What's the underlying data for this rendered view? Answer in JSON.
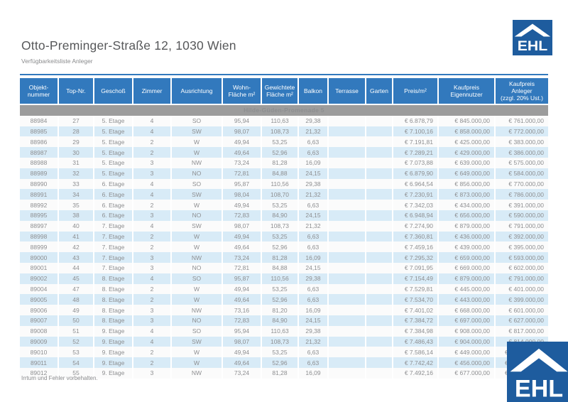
{
  "colors": {
    "brand_blue": "#1e5c9e",
    "header_blue": "#3279bd",
    "group_gray": "#9c9c9c",
    "row_alt_blue": "#d8ebf7",
    "row_light": "#fbfbfb",
    "text_gray": "#8d8e90",
    "title_gray": "#57585a"
  },
  "header": {
    "title": "Otto-Preminger-Straße 12, 1030 Wien",
    "subtitle": "Verfügbarkeitsliste Anleger",
    "logo_text": "EHL"
  },
  "table": {
    "group_label": "Hilde-Güden-Promenade 5",
    "columns": [
      "Objekt-\nnummer",
      "Top-Nr.",
      "Geschoß",
      "Zimmer",
      "Ausrichtung",
      "Wohn-\nFläche m²",
      "Gewichtete\nFläche m²",
      "Balkon",
      "Terrasse",
      "Garten",
      "Preis/m²",
      "Kaufpreis\nEigennutzer",
      "Kaufpreis\nAnleger\n(zzgl. 20% Ust.)"
    ],
    "column_keys": [
      "objektnummer",
      "top_nr",
      "geschoss",
      "zimmer",
      "ausrichtung",
      "wohnflaeche",
      "gewichtete_flaeche",
      "balkon",
      "terrasse",
      "garten",
      "preis_m2",
      "kaufpreis_eigennutzer",
      "kaufpreis_anleger"
    ],
    "rows": [
      [
        "88984",
        "27",
        "5. Etage",
        "4",
        "SO",
        "95,94",
        "110,63",
        "29,38",
        "",
        "",
        "€ 6.878,79",
        "€ 845.000,00",
        "€ 761.000,00"
      ],
      [
        "88985",
        "28",
        "5. Etage",
        "4",
        "SW",
        "98,07",
        "108,73",
        "21,32",
        "",
        "",
        "€ 7.100,16",
        "€ 858.000,00",
        "€ 772.000,00"
      ],
      [
        "88986",
        "29",
        "5. Etage",
        "2",
        "W",
        "49,94",
        "53,25",
        "6,63",
        "",
        "",
        "€ 7.191,81",
        "€ 425.000,00",
        "€ 383.000,00"
      ],
      [
        "88987",
        "30",
        "5. Etage",
        "2",
        "W",
        "49,64",
        "52,96",
        "6,63",
        "",
        "",
        "€ 7.289,21",
        "€ 429.000,00",
        "€ 386.000,00"
      ],
      [
        "88988",
        "31",
        "5. Etage",
        "3",
        "NW",
        "73,24",
        "81,28",
        "16,09",
        "",
        "",
        "€ 7.073,88",
        "€ 639.000,00",
        "€ 575.000,00"
      ],
      [
        "88989",
        "32",
        "5. Etage",
        "3",
        "NO",
        "72,81",
        "84,88",
        "24,15",
        "",
        "",
        "€ 6.879,90",
        "€ 649.000,00",
        "€ 584.000,00"
      ],
      [
        "88990",
        "33",
        "6. Etage",
        "4",
        "SO",
        "95,87",
        "110,56",
        "29,38",
        "",
        "",
        "€ 6.964,54",
        "€ 856.000,00",
        "€ 770.000,00"
      ],
      [
        "88991",
        "34",
        "6. Etage",
        "4",
        "SW",
        "98,04",
        "108,70",
        "21,32",
        "",
        "",
        "€ 7.230,91",
        "€ 873.000,00",
        "€ 786.000,00"
      ],
      [
        "88992",
        "35",
        "6. Etage",
        "2",
        "W",
        "49,94",
        "53,25",
        "6,63",
        "",
        "",
        "€ 7.342,03",
        "€ 434.000,00",
        "€ 391.000,00"
      ],
      [
        "88995",
        "38",
        "6. Etage",
        "3",
        "NO",
        "72,83",
        "84,90",
        "24,15",
        "",
        "",
        "€ 6.948,94",
        "€ 656.000,00",
        "€ 590.000,00"
      ],
      [
        "88997",
        "40",
        "7. Etage",
        "4",
        "SW",
        "98,07",
        "108,73",
        "21,32",
        "",
        "",
        "€ 7.274,90",
        "€ 879.000,00",
        "€ 791.000,00"
      ],
      [
        "88998",
        "41",
        "7. Etage",
        "2",
        "W",
        "49,94",
        "53,25",
        "6,63",
        "",
        "",
        "€ 7.360,81",
        "€ 436.000,00",
        "€ 392.000,00"
      ],
      [
        "88999",
        "42",
        "7. Etage",
        "2",
        "W",
        "49,64",
        "52,96",
        "6,63",
        "",
        "",
        "€ 7.459,16",
        "€ 439.000,00",
        "€ 395.000,00"
      ],
      [
        "89000",
        "43",
        "7. Etage",
        "3",
        "NW",
        "73,24",
        "81,28",
        "16,09",
        "",
        "",
        "€ 7.295,32",
        "€ 659.000,00",
        "€ 593.000,00"
      ],
      [
        "89001",
        "44",
        "7. Etage",
        "3",
        "NO",
        "72,81",
        "84,88",
        "24,15",
        "",
        "",
        "€ 7.091,95",
        "€ 669.000,00",
        "€ 602.000,00"
      ],
      [
        "89002",
        "45",
        "8. Etage",
        "4",
        "SO",
        "95,87",
        "110,56",
        "29,38",
        "",
        "",
        "€ 7.154,49",
        "€ 879.000,00",
        "€ 791.000,00"
      ],
      [
        "89004",
        "47",
        "8. Etage",
        "2",
        "W",
        "49,94",
        "53,25",
        "6,63",
        "",
        "",
        "€ 7.529,81",
        "€ 445.000,00",
        "€ 401.000,00"
      ],
      [
        "89005",
        "48",
        "8. Etage",
        "2",
        "W",
        "49,64",
        "52,96",
        "6,63",
        "",
        "",
        "€ 7.534,70",
        "€ 443.000,00",
        "€ 399.000,00"
      ],
      [
        "89006",
        "49",
        "8. Etage",
        "3",
        "NW",
        "73,16",
        "81,20",
        "16,09",
        "",
        "",
        "€ 7.401,02",
        "€ 668.000,00",
        "€ 601.000,00"
      ],
      [
        "89007",
        "50",
        "8. Etage",
        "3",
        "NO",
        "72,83",
        "84,90",
        "24,15",
        "",
        "",
        "€ 7.384,72",
        "€ 697.000,00",
        "€ 627.000,00"
      ],
      [
        "89008",
        "51",
        "9. Etage",
        "4",
        "SO",
        "95,94",
        "110,63",
        "29,38",
        "",
        "",
        "€ 7.384,98",
        "€ 908.000,00",
        "€ 817.000,00"
      ],
      [
        "89009",
        "52",
        "9. Etage",
        "4",
        "SW",
        "98,07",
        "108,73",
        "21,32",
        "",
        "",
        "€ 7.486,43",
        "€ 904.000,00",
        "€ 814.000,00"
      ],
      [
        "89010",
        "53",
        "9. Etage",
        "2",
        "W",
        "49,94",
        "53,25",
        "6,63",
        "",
        "",
        "€ 7.586,14",
        "€ 449.000,00",
        "€"
      ],
      [
        "89011",
        "54",
        "9. Etage",
        "2",
        "W",
        "49,64",
        "52,96",
        "6,63",
        "",
        "",
        "€ 7.742,42",
        "€ 456.000,00",
        "€"
      ],
      [
        "89012",
        "55",
        "9. Etage",
        "3",
        "NW",
        "73,24",
        "81,28",
        "16,09",
        "",
        "",
        "€ 7.492,16",
        "€ 677.000,00",
        "€"
      ]
    ]
  },
  "footer": {
    "disclaimer": "Irrtum und Fehler vorbehalten."
  }
}
